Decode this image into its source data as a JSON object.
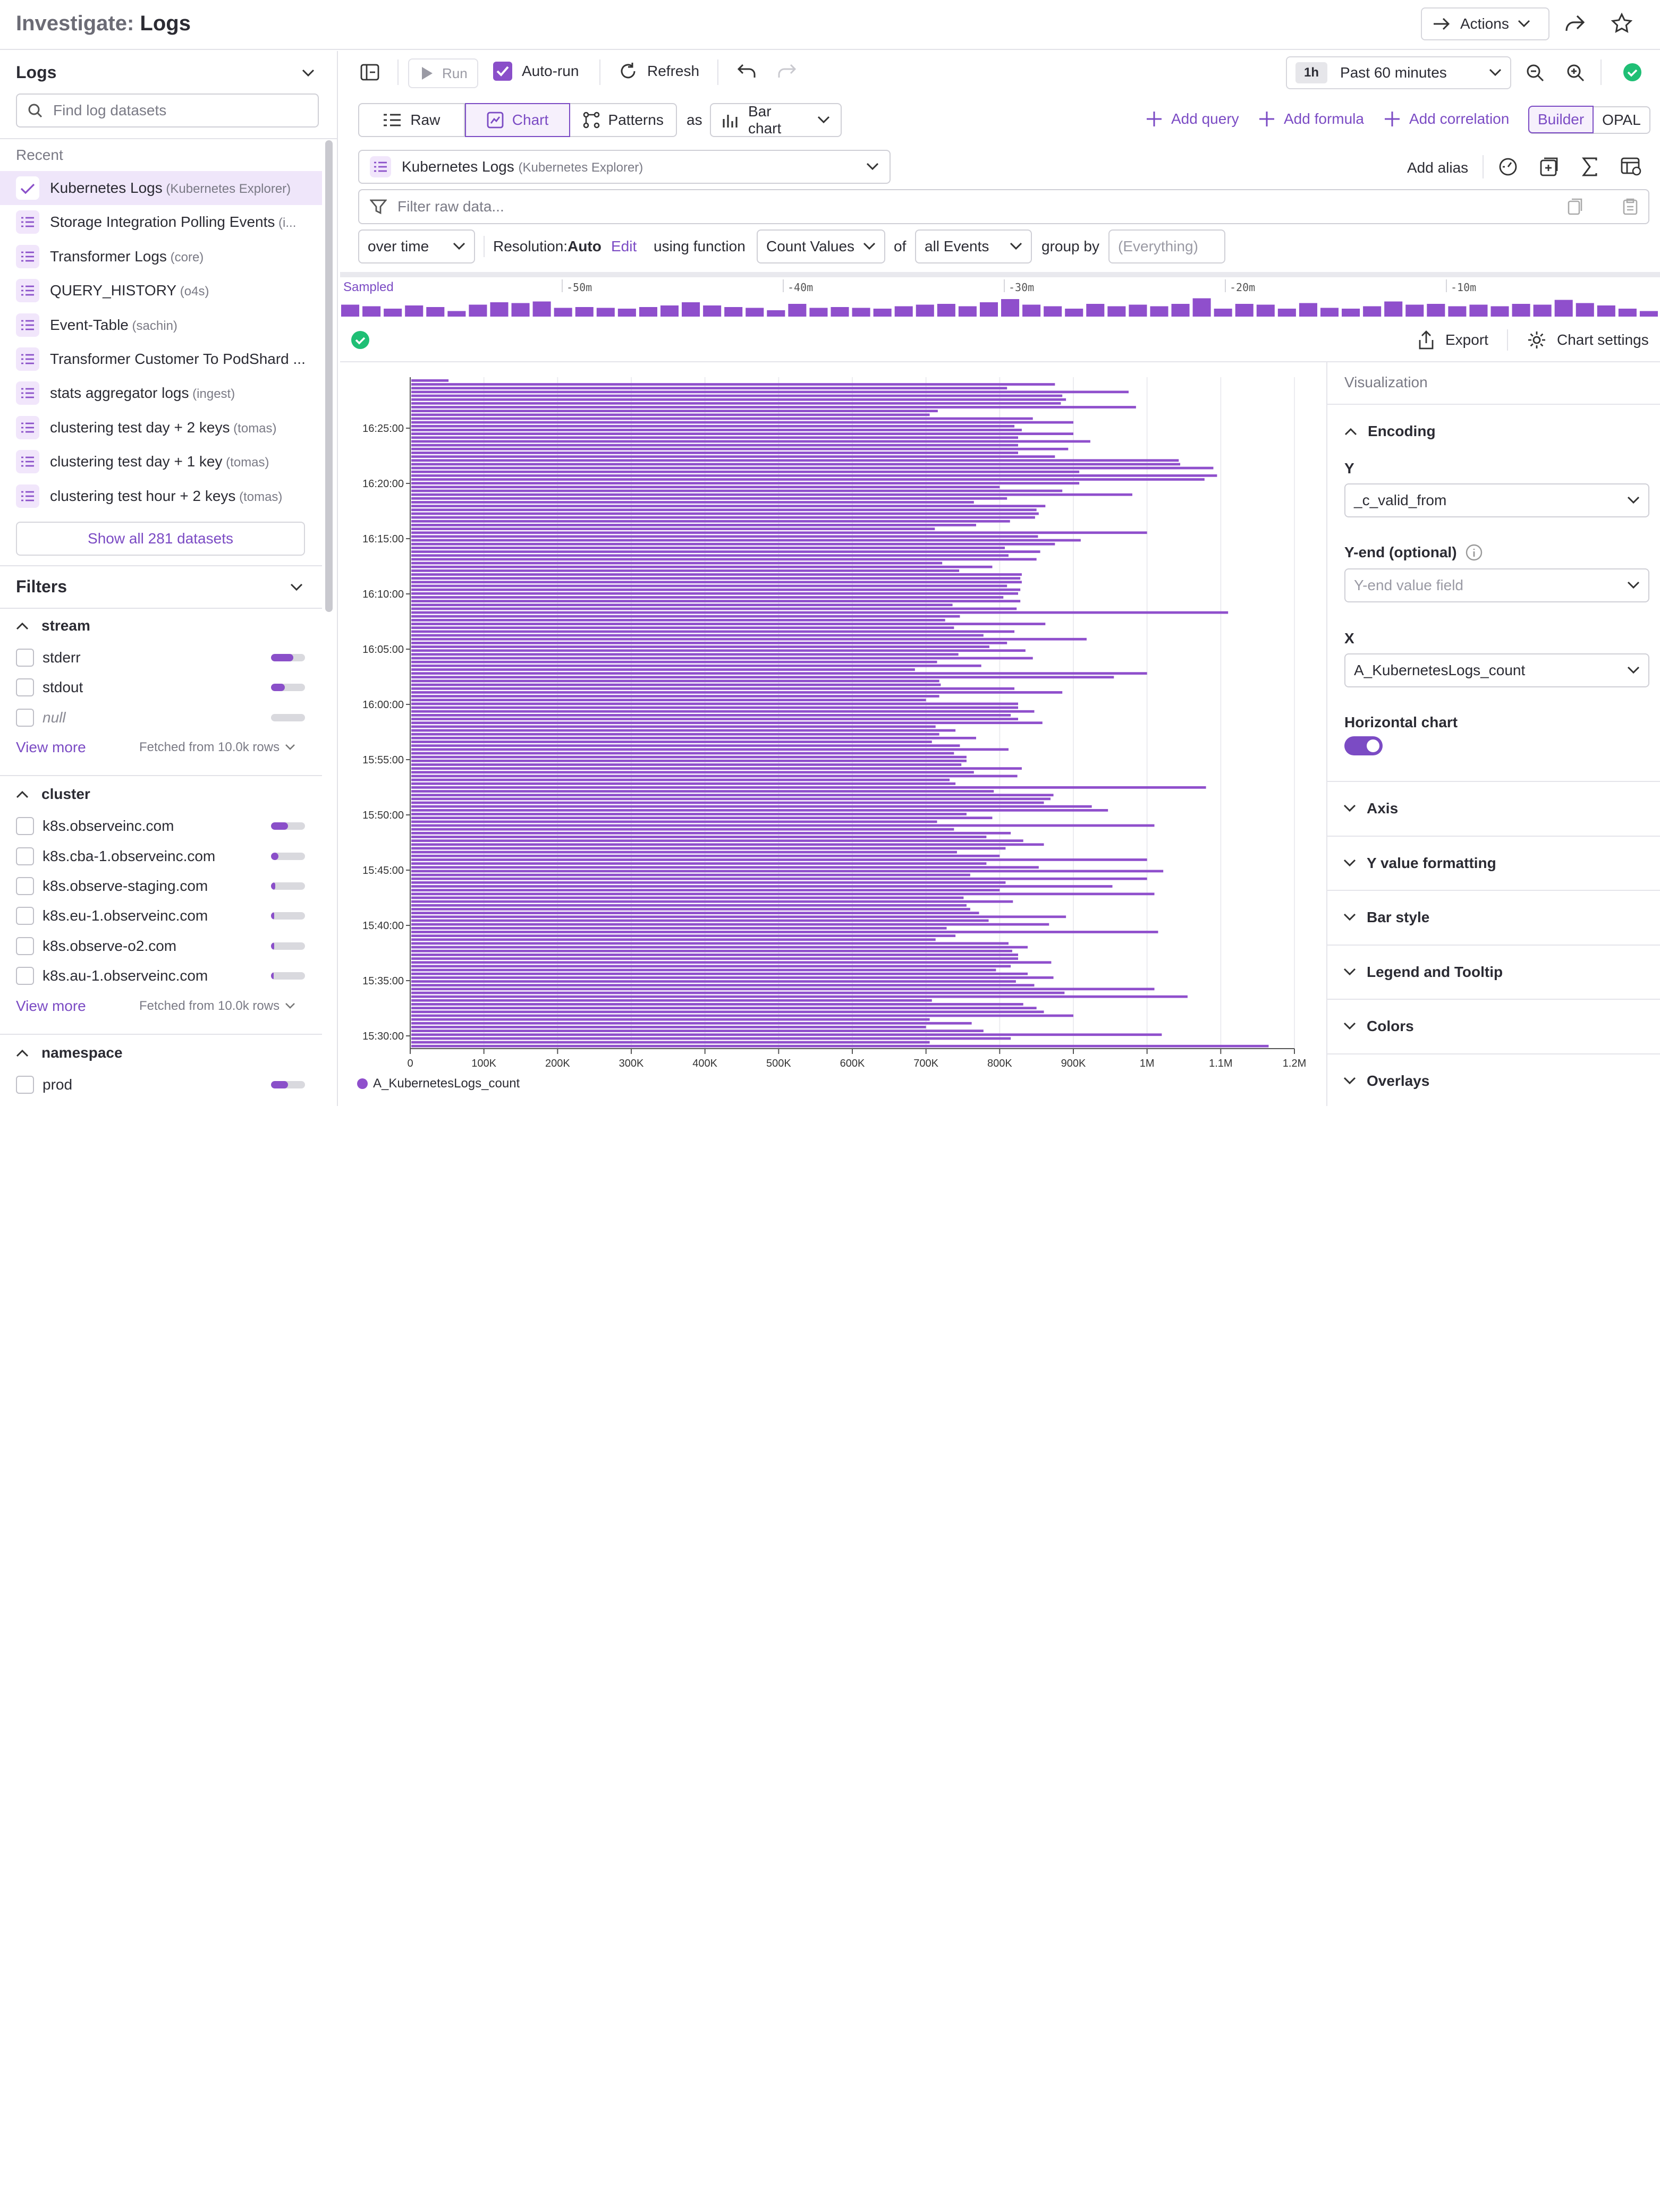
{
  "header": {
    "section": "Investigate:",
    "title": "Logs",
    "actions_label": "Actions"
  },
  "sidebar": {
    "title": "Logs",
    "search_placeholder": "Find log datasets",
    "recent_label": "Recent",
    "datasets": [
      {
        "name": "Kubernetes Logs",
        "tag": "(Kubernetes Explorer)",
        "selected": true
      },
      {
        "name": "Storage Integration Polling Events",
        "tag": "(i...",
        "selected": false
      },
      {
        "name": "Transformer Logs",
        "tag": "(core)",
        "selected": false
      },
      {
        "name": "QUERY_HISTORY",
        "tag": "(o4s)",
        "selected": false
      },
      {
        "name": "Event-Table",
        "tag": "(sachin)",
        "selected": false
      },
      {
        "name": "Transformer Customer To PodShard ...",
        "tag": "",
        "selected": false
      },
      {
        "name": "stats aggregator logs",
        "tag": "(ingest)",
        "selected": false
      },
      {
        "name": "clustering test day + 2 keys",
        "tag": "(tomas)",
        "selected": false
      },
      {
        "name": "clustering test day + 1 key",
        "tag": "(tomas)",
        "selected": false
      },
      {
        "name": "clustering test hour + 2 keys",
        "tag": "(tomas)",
        "selected": false
      }
    ],
    "show_all": "Show all 281 datasets",
    "filters_title": "Filters",
    "groups": [
      {
        "name": "stream",
        "items": [
          {
            "label": "stderr",
            "frac": 0.65,
            "italic": false
          },
          {
            "label": "stdout",
            "frac": 0.4,
            "italic": false
          },
          {
            "label": "null",
            "frac": 0.0,
            "italic": true
          }
        ],
        "view_more": "View more",
        "fetched": "Fetched from 10.0k rows"
      },
      {
        "name": "cluster",
        "items": [
          {
            "label": "k8s.observeinc.com",
            "frac": 0.5,
            "italic": false
          },
          {
            "label": "k8s.cba-1.observeinc.com",
            "frac": 0.22,
            "italic": false
          },
          {
            "label": "k8s.observe-staging.com",
            "frac": 0.12,
            "italic": false
          },
          {
            "label": "k8s.eu-1.observeinc.com",
            "frac": 0.1,
            "italic": false
          },
          {
            "label": "k8s.observe-o2.com",
            "frac": 0.09,
            "italic": false
          },
          {
            "label": "k8s.au-1.observeinc.com",
            "frac": 0.08,
            "italic": false
          }
        ],
        "view_more": "View more",
        "fetched": "Fetched from 10.0k rows"
      },
      {
        "name": "namespace",
        "items": [
          {
            "label": "prod",
            "frac": 0.5,
            "italic": false
          }
        ]
      }
    ]
  },
  "toolbar": {
    "run": "Run",
    "autorun": "Auto-run",
    "refresh": "Refresh",
    "time_badge": "1h",
    "time_range": "Past 60 minutes"
  },
  "modes": {
    "raw": "Raw",
    "chart": "Chart",
    "patterns": "Patterns",
    "as": "as",
    "chart_type": "Bar chart",
    "add_query": "Add query",
    "add_formula": "Add formula",
    "add_correlation": "Add correlation",
    "builder": "Builder",
    "opal": "OPAL"
  },
  "query": {
    "dataset": "Kubernetes Logs",
    "dataset_tag": "(Kubernetes Explorer)",
    "add_alias": "Add alias",
    "filter_placeholder": "Filter raw data...",
    "over_time": "over time",
    "resolution_label": "Resolution:",
    "resolution_value": "Auto",
    "edit": "Edit",
    "using_function": "using function",
    "function": "Count Values",
    "of": "of",
    "events": "all Events",
    "group_by": "group by",
    "group_placeholder": "(Everything)"
  },
  "timeline": {
    "label": "Sampled",
    "ticks": [
      "-50m",
      "-40m",
      "-30m",
      "-20m",
      "-10m"
    ],
    "values": [
      0.55,
      0.45,
      0.3,
      0.5,
      0.4,
      0.15,
      0.55,
      0.7,
      0.65,
      0.75,
      0.35,
      0.4,
      0.35,
      0.3,
      0.4,
      0.5,
      0.7,
      0.5,
      0.4,
      0.35,
      0.2,
      0.6,
      0.35,
      0.4,
      0.35,
      0.3,
      0.45,
      0.55,
      0.6,
      0.45,
      0.7,
      0.9,
      0.55,
      0.45,
      0.3,
      0.6,
      0.45,
      0.55,
      0.45,
      0.6,
      0.95,
      0.3,
      0.6,
      0.55,
      0.3,
      0.65,
      0.35,
      0.3,
      0.45,
      0.75,
      0.55,
      0.6,
      0.45,
      0.55,
      0.45,
      0.6,
      0.55,
      0.85,
      0.65,
      0.5,
      0.3,
      0.15
    ]
  },
  "chart_toolbar": {
    "export": "Export",
    "settings": "Chart settings"
  },
  "chart_data": {
    "type": "bar",
    "orientation": "horizontal",
    "series": [
      {
        "name": "A_KubernetesLogs_count",
        "color": "#8f4fcc"
      }
    ],
    "ylabels": [
      "16:25:00",
      "16:20:00",
      "16:15:00",
      "16:10:00",
      "16:05:00",
      "16:00:00",
      "15:55:00",
      "15:50:00",
      "15:45:00",
      "15:40:00",
      "15:35:00",
      "15:30:00"
    ],
    "xticks": [
      "0",
      "100K",
      "200K",
      "300K",
      "400K",
      "500K",
      "600K",
      "700K",
      "800K",
      "900K",
      "1M",
      "1.1M",
      "1.2M"
    ],
    "xlim": [
      0,
      1200000
    ],
    "values": [
      52000,
      875000,
      810000,
      975000,
      885000,
      890000,
      883000,
      985000,
      716000,
      705000,
      845000,
      900000,
      820000,
      830000,
      900000,
      825000,
      923000,
      825000,
      893000,
      825000,
      875000,
      1043000,
      1045000,
      1090000,
      908000,
      1095000,
      1078000,
      908000,
      800000,
      885000,
      980000,
      810000,
      765000,
      862000,
      850000,
      853000,
      848000,
      814000,
      768000,
      712000,
      1000000,
      852000,
      910000,
      875000,
      807000,
      855000,
      812000,
      850000,
      722000,
      790000,
      745000,
      830000,
      828000,
      830000,
      810000,
      828000,
      825000,
      805000,
      828000,
      736000,
      823000,
      1110000,
      746000,
      726000,
      862000,
      738000,
      820000,
      778000,
      918000,
      810000,
      786000,
      835000,
      744000,
      845000,
      715000,
      775000,
      685000,
      1000000,
      955000,
      718000,
      720000,
      820000,
      885000,
      718000,
      700000,
      825000,
      825000,
      847000,
      815000,
      825000,
      858000,
      713000,
      740000,
      718000,
      768000,
      708000,
      746000,
      812000,
      738000,
      755000,
      755000,
      748000,
      830000,
      765000,
      824000,
      732000,
      740000,
      1080000,
      792000,
      873000,
      869000,
      860000,
      925000,
      947000,
      755000,
      790000,
      715000,
      1010000,
      738000,
      815000,
      782000,
      832000,
      860000,
      808000,
      742000,
      800000,
      1000000,
      782000,
      853000,
      1022000,
      760000,
      1000000,
      808000,
      953000,
      800000,
      1010000,
      751000,
      818000,
      755000,
      760000,
      772000,
      890000,
      785000,
      867000,
      728000,
      1015000,
      740000,
      713000,
      812000,
      838000,
      817000,
      825000,
      825000,
      870000,
      815000,
      795000,
      838000,
      873000,
      822000,
      847000,
      1010000,
      888000,
      1055000,
      708000,
      832000,
      850000,
      860000,
      900000,
      705000,
      762000,
      700000,
      778000,
      1020000,
      815000,
      705000,
      1165000
    ]
  },
  "viz": {
    "title": "Visualization",
    "encoding": "Encoding",
    "y_label": "Y",
    "y_value": "_c_valid_from",
    "yend_label": "Y-end (optional)",
    "yend_placeholder": "Y-end value field",
    "x_label": "X",
    "x_value": "A_KubernetesLogs_count",
    "horizontal": "Horizontal chart",
    "sections": [
      "Axis",
      "Y value formatting",
      "Bar style",
      "Legend and Tooltip",
      "Colors",
      "Overlays"
    ]
  },
  "colors": {
    "accent": "#7b4bc4",
    "bar": "#8f4fcc",
    "success": "#1fbf75"
  }
}
